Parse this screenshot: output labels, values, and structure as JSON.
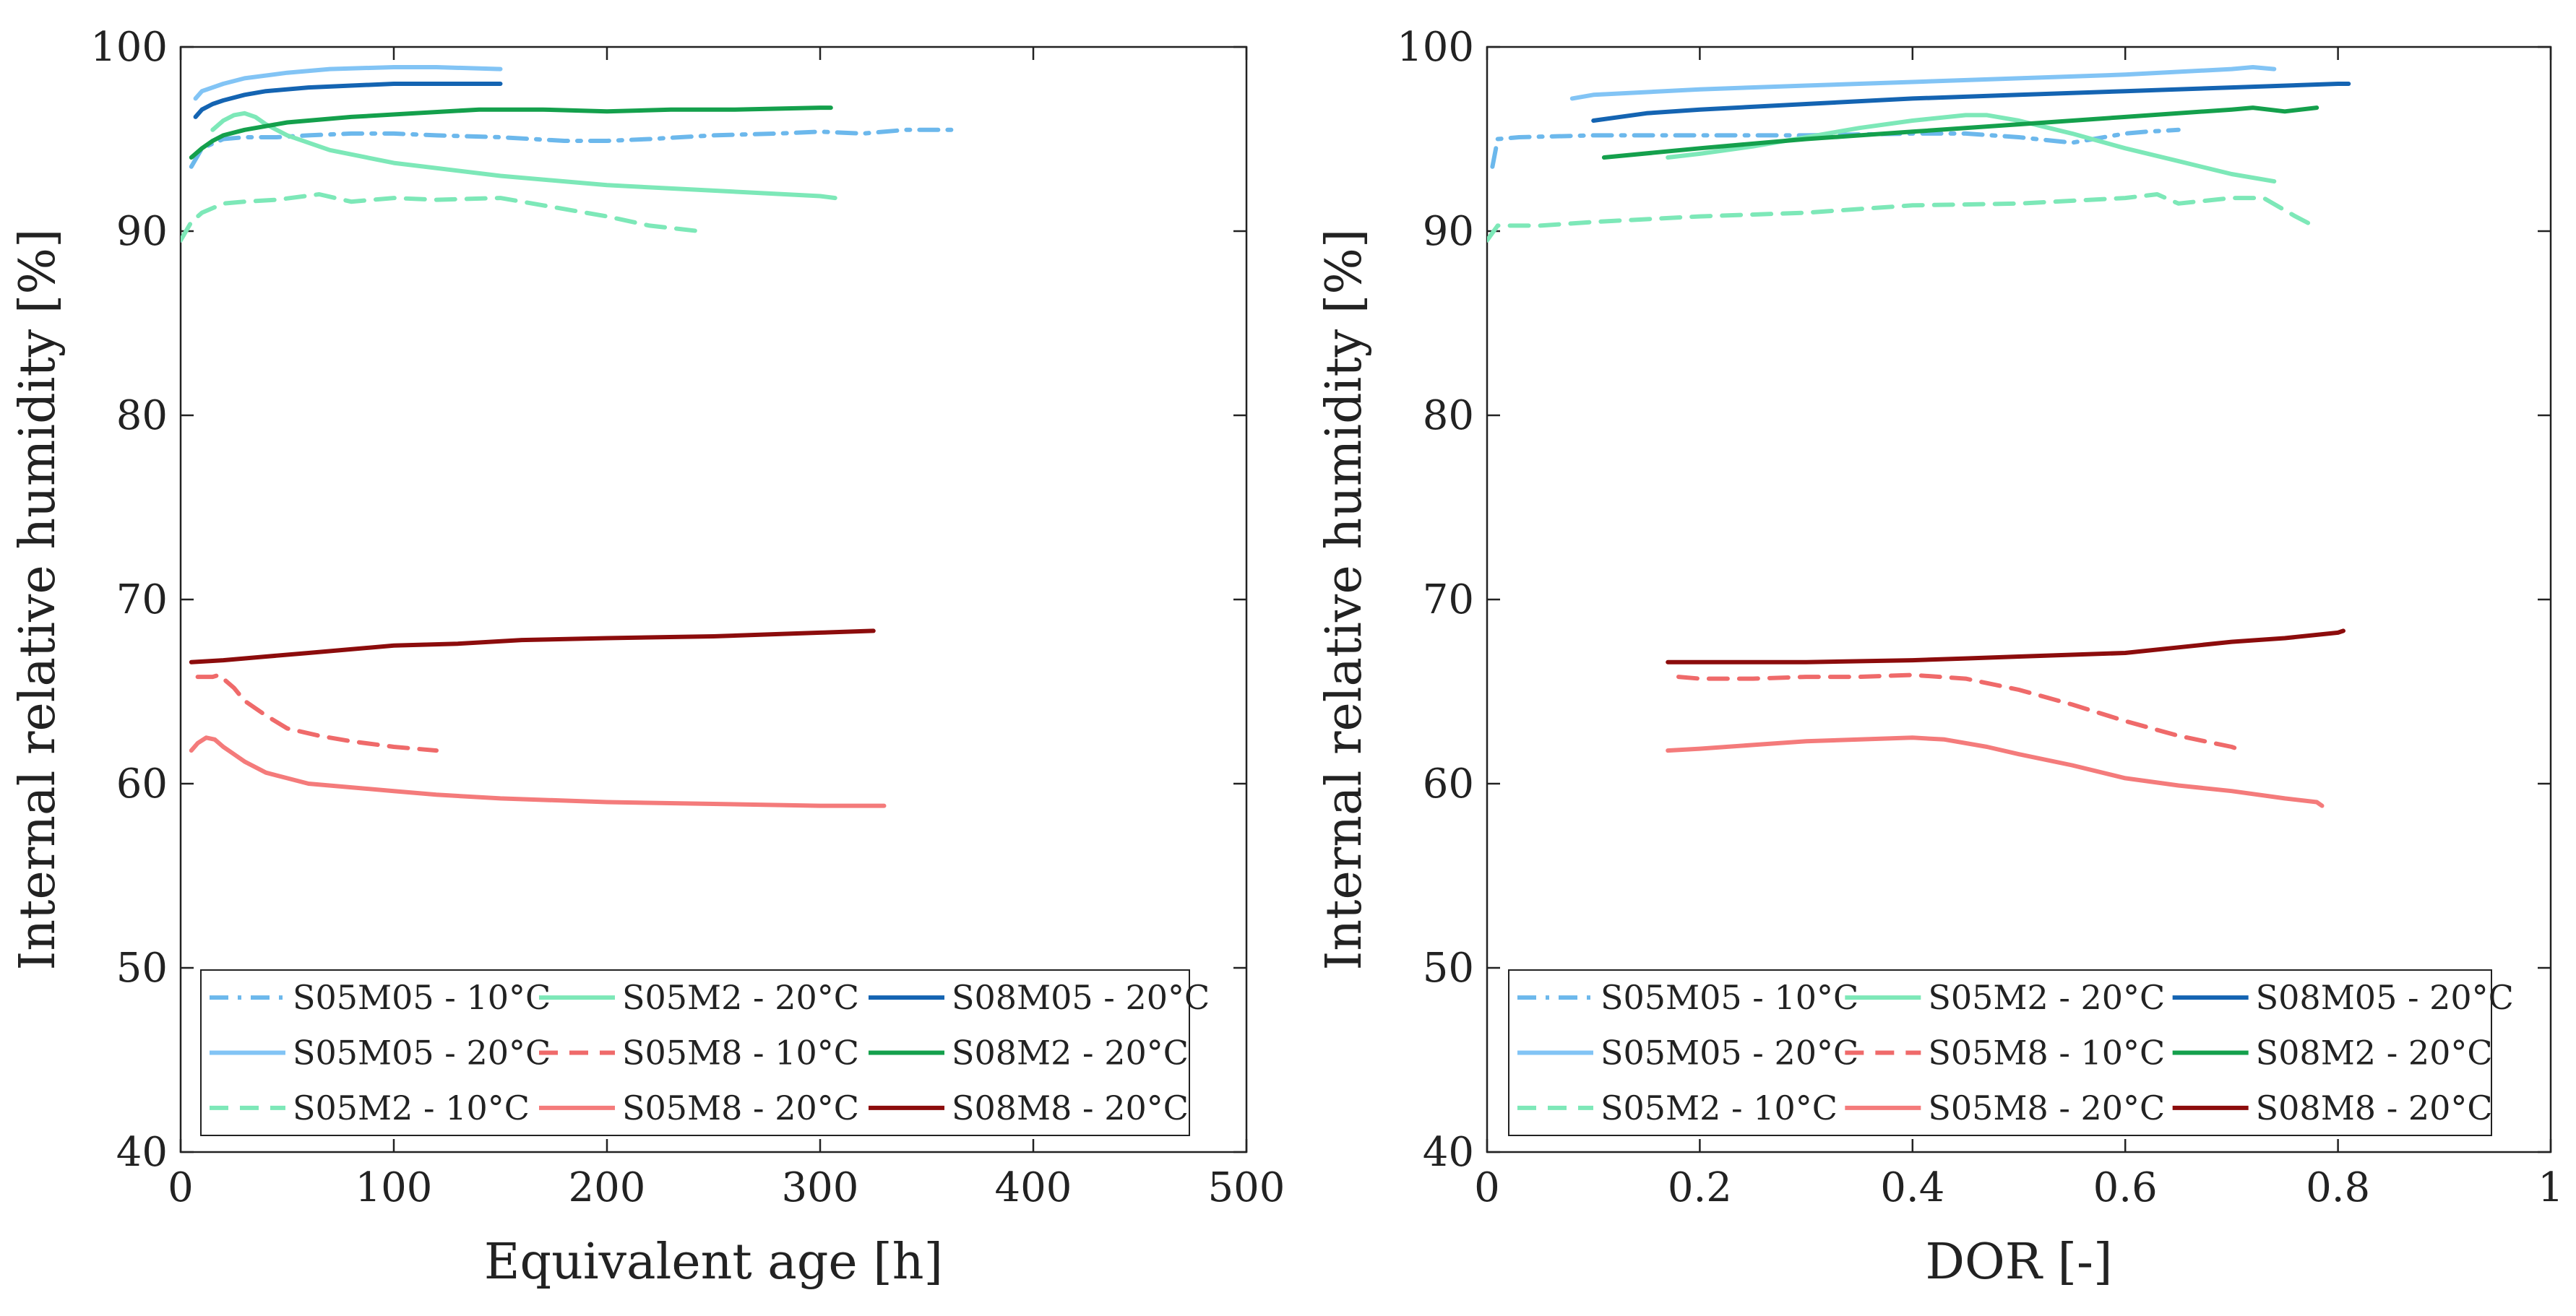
{
  "chart_data": [
    {
      "type": "line",
      "xlabel": "Equivalent age [h]",
      "ylabel": "Internal relative humidity [%]",
      "xlim": [
        0,
        500
      ],
      "ylim": [
        40,
        100
      ],
      "xticks": [
        0,
        100,
        200,
        300,
        400,
        500
      ],
      "yticks": [
        40,
        50,
        60,
        70,
        80,
        90,
        100
      ],
      "grid": false,
      "legend": {
        "placement": "bottom-left",
        "columns": 3
      },
      "series": [
        {
          "name": "S05M05 - 10°C",
          "color": "#6cb8ec",
          "dash": "dash-dot",
          "x": [
            5,
            10,
            20,
            30,
            45,
            60,
            80,
            100,
            120,
            150,
            180,
            200,
            220,
            250,
            280,
            300,
            320,
            340,
            363
          ],
          "y": [
            93.5,
            94.5,
            95.0,
            95.1,
            95.1,
            95.2,
            95.3,
            95.3,
            95.2,
            95.1,
            94.9,
            94.9,
            95.0,
            95.2,
            95.3,
            95.4,
            95.3,
            95.5,
            95.5
          ]
        },
        {
          "name": "S05M05 - 20°C",
          "color": "#82c4f5",
          "dash": "solid",
          "x": [
            7,
            10,
            20,
            30,
            50,
            70,
            100,
            120,
            150
          ],
          "y": [
            97.2,
            97.6,
            98.0,
            98.3,
            98.6,
            98.8,
            98.9,
            98.9,
            98.8
          ]
        },
        {
          "name": "S05M2 - 10°C",
          "color": "#7de8b8",
          "dash": "dash",
          "x": [
            0,
            5,
            10,
            20,
            30,
            45,
            65,
            80,
            100,
            120,
            150,
            170,
            200,
            220,
            243
          ],
          "y": [
            89.5,
            90.5,
            91.0,
            91.5,
            91.6,
            91.7,
            92.0,
            91.6,
            91.8,
            91.7,
            91.8,
            91.4,
            90.8,
            90.3,
            90.0
          ]
        },
        {
          "name": "S05M2 - 20°C",
          "color": "#7de8b8",
          "dash": "solid",
          "x": [
            15,
            20,
            25,
            30,
            35,
            40,
            50,
            70,
            100,
            150,
            200,
            250,
            300,
            307
          ],
          "y": [
            95.5,
            96.0,
            96.3,
            96.4,
            96.2,
            95.8,
            95.2,
            94.4,
            93.7,
            93.0,
            92.5,
            92.2,
            91.9,
            91.8
          ]
        },
        {
          "name": "S05M8 - 10°C",
          "color": "#ef6a6a",
          "dash": "dash",
          "x": [
            8,
            12,
            15,
            18,
            25,
            30,
            40,
            50,
            65,
            80,
            100,
            120
          ],
          "y": [
            65.8,
            65.8,
            65.8,
            65.9,
            65.2,
            64.5,
            63.7,
            63.0,
            62.6,
            62.3,
            62.0,
            61.8
          ]
        },
        {
          "name": "S05M8 - 20°C",
          "color": "#f47b7b",
          "dash": "solid",
          "x": [
            5,
            8,
            12,
            16,
            20,
            25,
            30,
            40,
            50,
            60,
            80,
            100,
            120,
            150,
            200,
            250,
            300,
            330
          ],
          "y": [
            61.8,
            62.2,
            62.5,
            62.4,
            62.0,
            61.6,
            61.2,
            60.6,
            60.3,
            60.0,
            59.8,
            59.6,
            59.4,
            59.2,
            59.0,
            58.9,
            58.8,
            58.8
          ]
        },
        {
          "name": "S08M05 - 20°C",
          "color": "#1464b2",
          "dash": "solid",
          "x": [
            7,
            10,
            15,
            20,
            30,
            40,
            60,
            80,
            100,
            120,
            140,
            150
          ],
          "y": [
            96.2,
            96.6,
            96.9,
            97.1,
            97.4,
            97.6,
            97.8,
            97.9,
            98.0,
            98.0,
            98.0,
            98.0
          ]
        },
        {
          "name": "S08M2 - 20°C",
          "color": "#14a04c",
          "dash": "solid",
          "x": [
            5,
            10,
            15,
            20,
            30,
            50,
            80,
            110,
            140,
            170,
            200,
            230,
            260,
            300,
            305
          ],
          "y": [
            94.0,
            94.5,
            94.9,
            95.2,
            95.5,
            95.9,
            96.2,
            96.4,
            96.6,
            96.6,
            96.5,
            96.6,
            96.6,
            96.7,
            96.7
          ]
        },
        {
          "name": "S08M8 - 20°C",
          "color": "#8c0c0c",
          "dash": "solid",
          "x": [
            5,
            20,
            40,
            60,
            80,
            100,
            130,
            160,
            200,
            250,
            300,
            325
          ],
          "y": [
            66.6,
            66.7,
            66.9,
            67.1,
            67.3,
            67.5,
            67.6,
            67.8,
            67.9,
            68.0,
            68.2,
            68.3
          ]
        }
      ]
    },
    {
      "type": "line",
      "xlabel": "DOR [-]",
      "ylabel": "Internal relative humidity [%]",
      "xlim": [
        0,
        1
      ],
      "ylim": [
        40,
        100
      ],
      "xticks": [
        0,
        0.2,
        0.4,
        0.6,
        0.8,
        1
      ],
      "yticks": [
        40,
        50,
        60,
        70,
        80,
        90,
        100
      ],
      "grid": false,
      "legend": {
        "placement": "bottom-left",
        "columns": 3
      },
      "series": [
        {
          "name": "S05M05 - 10°C",
          "color": "#6cb8ec",
          "dash": "dash-dot",
          "x": [
            0.005,
            0.01,
            0.03,
            0.1,
            0.2,
            0.3,
            0.4,
            0.45,
            0.5,
            0.55,
            0.6,
            0.62,
            0.65
          ],
          "y": [
            93.5,
            95.0,
            95.1,
            95.2,
            95.2,
            95.2,
            95.3,
            95.3,
            95.1,
            94.8,
            95.3,
            95.4,
            95.5
          ]
        },
        {
          "name": "S05M05 - 20°C",
          "color": "#82c4f5",
          "dash": "solid",
          "x": [
            0.08,
            0.1,
            0.2,
            0.3,
            0.4,
            0.5,
            0.6,
            0.7,
            0.72,
            0.74
          ],
          "y": [
            97.2,
            97.4,
            97.7,
            97.9,
            98.1,
            98.3,
            98.5,
            98.8,
            98.9,
            98.8
          ]
        },
        {
          "name": "S05M2 - 10°C",
          "color": "#7de8b8",
          "dash": "dash",
          "x": [
            0,
            0.01,
            0.05,
            0.1,
            0.2,
            0.3,
            0.4,
            0.5,
            0.6,
            0.63,
            0.65,
            0.7,
            0.73,
            0.76,
            0.78
          ],
          "y": [
            89.5,
            90.3,
            90.3,
            90.5,
            90.8,
            91.0,
            91.4,
            91.5,
            91.8,
            92.0,
            91.5,
            91.8,
            91.8,
            90.8,
            90.2
          ]
        },
        {
          "name": "S05M2 - 20°C",
          "color": "#7de8b8",
          "dash": "solid",
          "x": [
            0.17,
            0.2,
            0.25,
            0.3,
            0.35,
            0.4,
            0.45,
            0.47,
            0.5,
            0.55,
            0.6,
            0.65,
            0.7,
            0.74
          ],
          "y": [
            94.0,
            94.2,
            94.6,
            95.1,
            95.6,
            96.0,
            96.3,
            96.3,
            96.0,
            95.3,
            94.5,
            93.8,
            93.1,
            92.7
          ]
        },
        {
          "name": "S05M8 - 10°C",
          "color": "#ef6a6a",
          "dash": "dash",
          "x": [
            0.18,
            0.2,
            0.25,
            0.3,
            0.35,
            0.4,
            0.45,
            0.5,
            0.55,
            0.6,
            0.65,
            0.7,
            0.71
          ],
          "y": [
            65.8,
            65.7,
            65.7,
            65.8,
            65.8,
            65.9,
            65.7,
            65.1,
            64.3,
            63.4,
            62.6,
            62.0,
            61.8
          ]
        },
        {
          "name": "S05M8 - 20°C",
          "color": "#f47b7b",
          "dash": "solid",
          "x": [
            0.17,
            0.2,
            0.25,
            0.3,
            0.35,
            0.4,
            0.43,
            0.47,
            0.5,
            0.55,
            0.6,
            0.65,
            0.7,
            0.75,
            0.78,
            0.785
          ],
          "y": [
            61.8,
            61.9,
            62.1,
            62.3,
            62.4,
            62.5,
            62.4,
            62.0,
            61.6,
            61.0,
            60.3,
            59.9,
            59.6,
            59.2,
            59.0,
            58.8
          ]
        },
        {
          "name": "S08M05 - 20°C",
          "color": "#1464b2",
          "dash": "solid",
          "x": [
            0.1,
            0.15,
            0.2,
            0.3,
            0.4,
            0.5,
            0.6,
            0.7,
            0.8,
            0.81
          ],
          "y": [
            96.0,
            96.4,
            96.6,
            96.9,
            97.2,
            97.4,
            97.6,
            97.8,
            98.0,
            98.0
          ]
        },
        {
          "name": "S08M2 - 20°C",
          "color": "#14a04c",
          "dash": "solid",
          "x": [
            0.11,
            0.2,
            0.3,
            0.4,
            0.5,
            0.6,
            0.7,
            0.72,
            0.75,
            0.78
          ],
          "y": [
            94.0,
            94.5,
            95.0,
            95.4,
            95.8,
            96.2,
            96.6,
            96.7,
            96.5,
            96.7
          ]
        },
        {
          "name": "S08M8 - 20°C",
          "color": "#8c0c0c",
          "dash": "solid",
          "x": [
            0.17,
            0.25,
            0.3,
            0.4,
            0.45,
            0.5,
            0.55,
            0.6,
            0.65,
            0.7,
            0.75,
            0.8,
            0.805
          ],
          "y": [
            66.6,
            66.6,
            66.6,
            66.7,
            66.8,
            66.9,
            67.0,
            67.1,
            67.4,
            67.7,
            67.9,
            68.2,
            68.3
          ]
        }
      ]
    }
  ]
}
